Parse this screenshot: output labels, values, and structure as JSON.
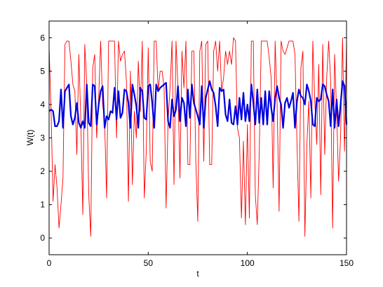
{
  "chart_data": {
    "type": "line",
    "xlabel": "t",
    "ylabel": "W(t)",
    "xlim": [
      0,
      150
    ],
    "ylim": [
      -0.5,
      6.5
    ],
    "xticks": [
      0,
      50,
      100,
      150
    ],
    "yticks": [
      0,
      1,
      2,
      3,
      4,
      5,
      6
    ],
    "grid": false,
    "legend": "none",
    "x_step": 1,
    "series": [
      {
        "color": "#ff0000",
        "stroke": "thin",
        "values": [
          5.7,
          3.8,
          1.1,
          2.2,
          1.5,
          0.3,
          1.0,
          1.8,
          5.8,
          5.9,
          5.9,
          5.3,
          4.6,
          4.4,
          2.5,
          5.5,
          3.5,
          0.7,
          5.8,
          4.6,
          1.3,
          0.05,
          5.1,
          5.5,
          3.0,
          4.2,
          5.9,
          4.0,
          3.5,
          1.2,
          5.9,
          5.9,
          5.9,
          5.9,
          3.0,
          5.9,
          5.3,
          5.5,
          5.6,
          4.7,
          1.1,
          5.0,
          1.6,
          3.8,
          3.0,
          5.3,
          3.8,
          5.9,
          1.2,
          2.6,
          5.7,
          2.3,
          2.0,
          5.9,
          5.9,
          4.4,
          5.0,
          5.0,
          4.5,
          0.9,
          3.5,
          4.5,
          5.9,
          1.6,
          5.9,
          4.5,
          1.8,
          5.6,
          4.5,
          5.9,
          2.2,
          2.2,
          5.6,
          5.6,
          2.3,
          0.5,
          5.6,
          5.9,
          2.3,
          5.8,
          5.9,
          2.2,
          2.2,
          5.6,
          5.9,
          5.0,
          5.9,
          4.4,
          4.8,
          5.6,
          5.2,
          5.6,
          5.2,
          6.0,
          5.9,
          3.3,
          3.0,
          0.6,
          2.9,
          0.4,
          3.4,
          0.6,
          5.9,
          5.9,
          1.3,
          0.4,
          2.6,
          5.9,
          5.9,
          5.9,
          5.9,
          5.4,
          4.8,
          1.5,
          5.9,
          4.0,
          0.8,
          5.9,
          5.6,
          5.5,
          5.7,
          5.9,
          5.9,
          5.9,
          5.5,
          2.9,
          0.5,
          5.1,
          5.6,
          0.05,
          2.8,
          4.1,
          1.2,
          5.9,
          4.1,
          2.8,
          5.2,
          1.3,
          5.8,
          2.5,
          4.8,
          5.9,
          4.7,
          0.3,
          5.5,
          3.8,
          1.7,
          3.0,
          6.0,
          2.6,
          5.9
        ]
      },
      {
        "color": "#0000dd",
        "stroke": "thick",
        "values": [
          3.8,
          3.85,
          3.8,
          3.35,
          3.35,
          3.5,
          4.45,
          3.3,
          4.4,
          4.5,
          4.6,
          3.65,
          3.4,
          3.6,
          4.05,
          3.45,
          3.3,
          3.5,
          3.3,
          4.6,
          3.45,
          3.35,
          4.6,
          4.55,
          3.4,
          4.0,
          4.4,
          4.55,
          3.3,
          3.65,
          3.55,
          3.8,
          3.75,
          4.5,
          3.55,
          4.4,
          3.6,
          3.75,
          4.45,
          4.4,
          4.05,
          3.3,
          4.6,
          4.3,
          3.95,
          3.3,
          4.5,
          4.4,
          3.6,
          3.55,
          4.55,
          4.6,
          4.05,
          3.3,
          4.6,
          4.4,
          4.5,
          4.55,
          4.6,
          4.65,
          3.5,
          3.3,
          4.15,
          3.65,
          3.85,
          4.55,
          3.5,
          4.2,
          4.05,
          3.35,
          4.45,
          3.6,
          4.6,
          4.05,
          3.85,
          3.65,
          3.4,
          4.55,
          3.3,
          4.2,
          4.45,
          4.7,
          4.45,
          4.35,
          3.95,
          3.35,
          4.5,
          4.4,
          4.45,
          3.7,
          3.5,
          4.15,
          3.45,
          3.4,
          3.95,
          3.4,
          4.2,
          3.55,
          4.35,
          3.5,
          4.0,
          3.5,
          4.6,
          4.05,
          3.4,
          4.45,
          3.45,
          4.2,
          3.4,
          4.4,
          3.4,
          4.4,
          3.9,
          3.5,
          4.2,
          4.55,
          4.2,
          4.0,
          3.3,
          4.05,
          4.2,
          3.9,
          4.1,
          4.35,
          3.3,
          4.1,
          4.45,
          4.25,
          4.2,
          4.0,
          4.6,
          4.4,
          4.1,
          3.4,
          3.35,
          4.2,
          4.1,
          4.15,
          4.6,
          4.55,
          4.3,
          4.1,
          3.35,
          4.45,
          3.3,
          4.15,
          3.35,
          4.0,
          4.7,
          4.55,
          3.4
        ]
      }
    ]
  }
}
